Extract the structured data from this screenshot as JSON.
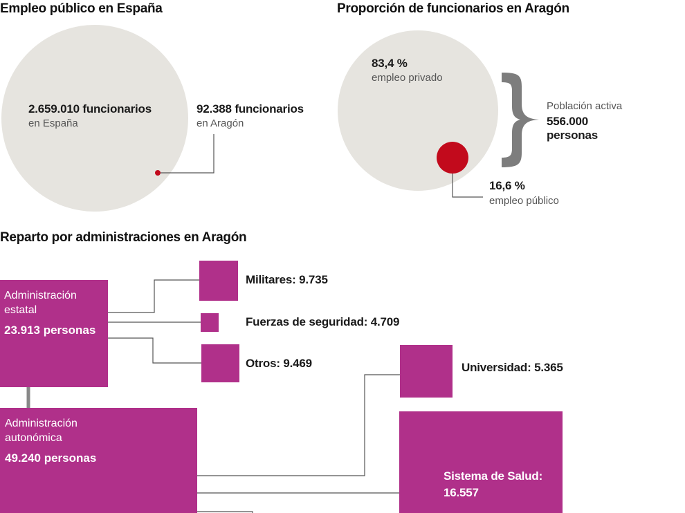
{
  "colors": {
    "circle_grey": "#e6e4df",
    "red_dot": "#c20a1c",
    "magenta": "#b0308a",
    "brace": "#7d7d7d",
    "line": "#555555"
  },
  "section1": {
    "title": "Empleo público en España",
    "spain_value": "2.659.010 funcionarios",
    "spain_sub": "en España",
    "aragon_value": "92.388 funcionarios",
    "aragon_sub": "en Aragón"
  },
  "section2": {
    "title": "Proporción de funcionarios en Aragón",
    "private_pct": "83,4 %",
    "private_label": "empleo privado",
    "public_pct": "16,6 %",
    "public_label": "empleo público",
    "active_label": "Población activa",
    "active_value_1": "556.000",
    "active_value_2": "personas"
  },
  "section3": {
    "title": "Reparto por administraciones en Aragón",
    "estatal_line1": "Administración",
    "estatal_line2": "estatal",
    "estatal_total": "23.913 personas",
    "autonomica_line1": "Administración",
    "autonomica_line2": "autonómica",
    "autonomica_total": "49.240 personas",
    "militares": "Militares: 9.735",
    "fuerzas": "Fuerzas de seguridad: 4.709",
    "otros": "Otros: 9.469",
    "universidad": "Universidad: 5.365",
    "salud_1": "Sistema de Salud:",
    "salud_2": "16.557"
  },
  "chart_data": [
    {
      "type": "bubble",
      "title": "Empleo público en España",
      "series": [
        {
          "name": "funcionarios en España",
          "value": 2659010
        },
        {
          "name": "funcionarios en Aragón",
          "value": 92388
        }
      ]
    },
    {
      "type": "bubble",
      "title": "Proporción de funcionarios en Aragón",
      "total_label": "Población activa",
      "total": 556000,
      "series": [
        {
          "name": "empleo privado",
          "value": 83.4,
          "unit": "%"
        },
        {
          "name": "empleo público",
          "value": 16.6,
          "unit": "%"
        }
      ]
    },
    {
      "type": "treemap",
      "title": "Reparto por administraciones en Aragón",
      "groups": [
        {
          "name": "Administración estatal",
          "value": 23913,
          "children": [
            {
              "name": "Militares",
              "value": 9735
            },
            {
              "name": "Fuerzas de seguridad",
              "value": 4709
            },
            {
              "name": "Otros",
              "value": 9469
            }
          ]
        },
        {
          "name": "Administración autonómica",
          "value": 49240,
          "children": [
            {
              "name": "Universidad",
              "value": 5365
            },
            {
              "name": "Sistema de Salud",
              "value": 16557
            }
          ]
        }
      ]
    }
  ]
}
